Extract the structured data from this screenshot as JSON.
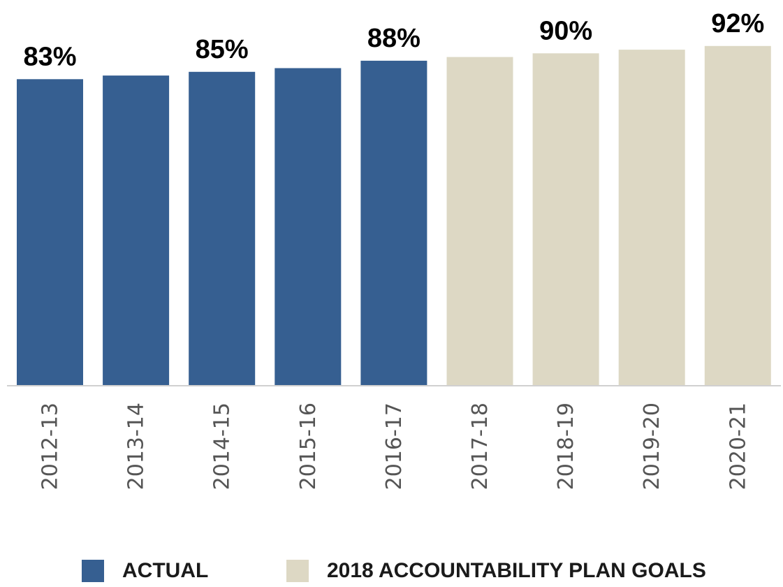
{
  "chart_data": {
    "type": "bar",
    "categories": [
      "2012-13",
      "2013-14",
      "2014-15",
      "2015-16",
      "2016-17",
      "2017-18",
      "2018-19",
      "2019-20",
      "2020-21"
    ],
    "series": [
      {
        "name": "ACTUAL",
        "color": "#365f91",
        "values": [
          83,
          84,
          85,
          86,
          88,
          null,
          null,
          null,
          null
        ]
      },
      {
        "name": "2018 ACCOUNTABILITY PLAN GOALS",
        "color": "#ddd8c4",
        "values": [
          null,
          null,
          null,
          null,
          null,
          89,
          90,
          91,
          92
        ]
      }
    ],
    "data_labels": [
      "83%",
      "",
      "85%",
      "",
      "88%",
      "",
      "90%",
      "",
      "92%"
    ],
    "ylim": [
      0,
      100
    ],
    "grid": false,
    "legend_position": "bottom",
    "title": "",
    "xlabel": "",
    "ylabel": ""
  }
}
